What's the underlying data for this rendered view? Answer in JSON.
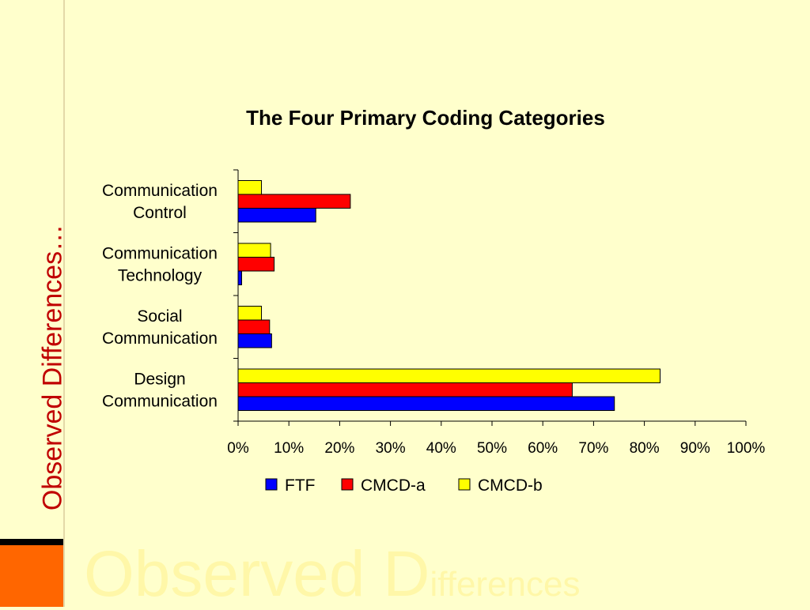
{
  "slide": {
    "side_title": "Observed Differences…",
    "watermark_big": "Observed D",
    "watermark_small": "ifferences"
  },
  "chart_data": {
    "type": "bar",
    "orientation": "horizontal",
    "title": "The Four Primary Coding Categories",
    "categories": [
      [
        "Communication",
        "Control"
      ],
      [
        "Communication",
        "Technology"
      ],
      [
        "Social",
        "Communication"
      ],
      [
        "Design",
        "Communication"
      ]
    ],
    "series": [
      {
        "name": "FTF",
        "color": "#0000FF",
        "values": [
          15.3,
          0.7,
          6.6,
          74.1
        ]
      },
      {
        "name": "CMCD-a",
        "color": "#FF0000",
        "values": [
          22.1,
          7.1,
          6.2,
          65.8
        ]
      },
      {
        "name": "CMCD-b",
        "color": "#FFFF00",
        "values": [
          4.6,
          6.4,
          4.6,
          83.1
        ]
      }
    ],
    "xlim": [
      0,
      100
    ],
    "xticks": [
      "0%",
      "10%",
      "20%",
      "30%",
      "40%",
      "50%",
      "60%",
      "70%",
      "80%",
      "90%",
      "100%"
    ],
    "grid": false,
    "legend_position": "bottom"
  }
}
